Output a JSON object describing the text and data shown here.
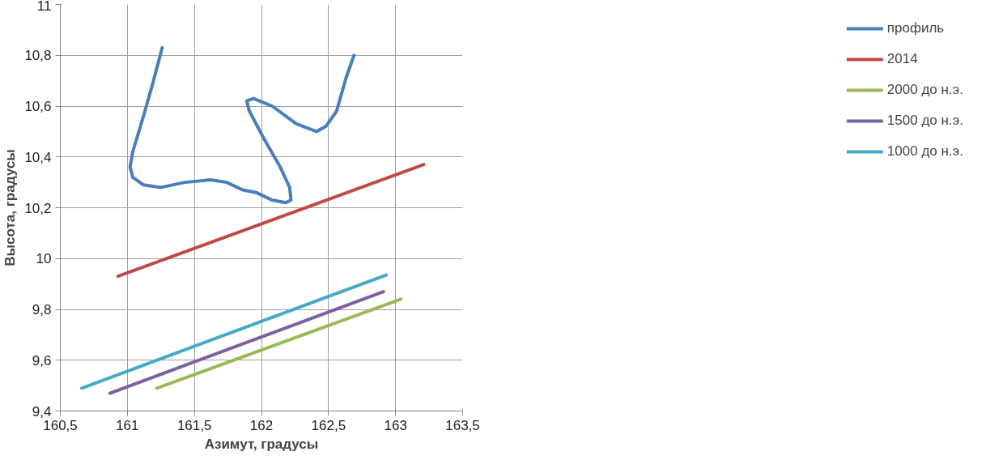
{
  "chart_data": {
    "type": "line",
    "xlabel": "Азимут, градусы",
    "ylabel": "Высота, градусы",
    "xlim": [
      160.5,
      163.5
    ],
    "ylim": [
      9.4,
      11
    ],
    "xticks": [
      {
        "value": 160.5,
        "label": "160,5"
      },
      161,
      {
        "value": 161.5,
        "label": "161,5"
      },
      162,
      {
        "value": 162.5,
        "label": "162,5"
      },
      163,
      {
        "value": 163.5,
        "label": "163,5"
      }
    ],
    "yticks": [
      {
        "value": 9.4,
        "label": "9,4"
      },
      {
        "value": 9.6,
        "label": "9,6"
      },
      {
        "value": 9.8,
        "label": "9,8"
      },
      10,
      {
        "value": 10.2,
        "label": "10,2"
      },
      {
        "value": 10.4,
        "label": "10,4"
      },
      {
        "value": 10.6,
        "label": "10,6"
      },
      {
        "value": 10.8,
        "label": "10,8"
      },
      11
    ],
    "grid": true,
    "legend": "right",
    "marker": "none",
    "line_style": "solid",
    "series": [
      {
        "name": "профиль",
        "color": "#4a7ebb",
        "x": [
          161.26,
          161.19,
          161.12,
          161.04,
          161.02,
          161.04,
          161.12,
          161.25,
          161.43,
          161.62,
          161.74,
          161.86,
          161.96,
          162.08,
          162.18,
          162.22,
          162.21,
          162.14,
          162.02,
          161.91,
          161.89,
          161.94,
          162.08,
          162.26,
          162.41,
          162.48,
          162.56,
          162.63,
          162.69
        ],
        "values": [
          10.83,
          10.69,
          10.56,
          10.42,
          10.36,
          10.32,
          10.29,
          10.28,
          10.3,
          10.31,
          10.3,
          10.27,
          10.26,
          10.23,
          10.22,
          10.23,
          10.28,
          10.36,
          10.47,
          10.58,
          10.62,
          10.63,
          10.6,
          10.53,
          10.5,
          10.52,
          10.58,
          10.71,
          10.8
        ]
      },
      {
        "name": "2014",
        "color": "#be4b48",
        "x": [
          160.93,
          163.21
        ],
        "values": [
          9.93,
          10.37
        ]
      },
      {
        "name": "2000 до н.э.",
        "color": "#98b954",
        "x": [
          161.22,
          163.04
        ],
        "values": [
          9.49,
          9.84
        ]
      },
      {
        "name": "1500 до н.э.",
        "color": "#7d60a0",
        "x": [
          160.87,
          162.91
        ],
        "values": [
          9.47,
          9.87
        ]
      },
      {
        "name": "1000 до н.э.",
        "color": "#46aac5",
        "x": [
          160.66,
          162.93
        ],
        "values": [
          9.49,
          9.935
        ]
      }
    ]
  }
}
